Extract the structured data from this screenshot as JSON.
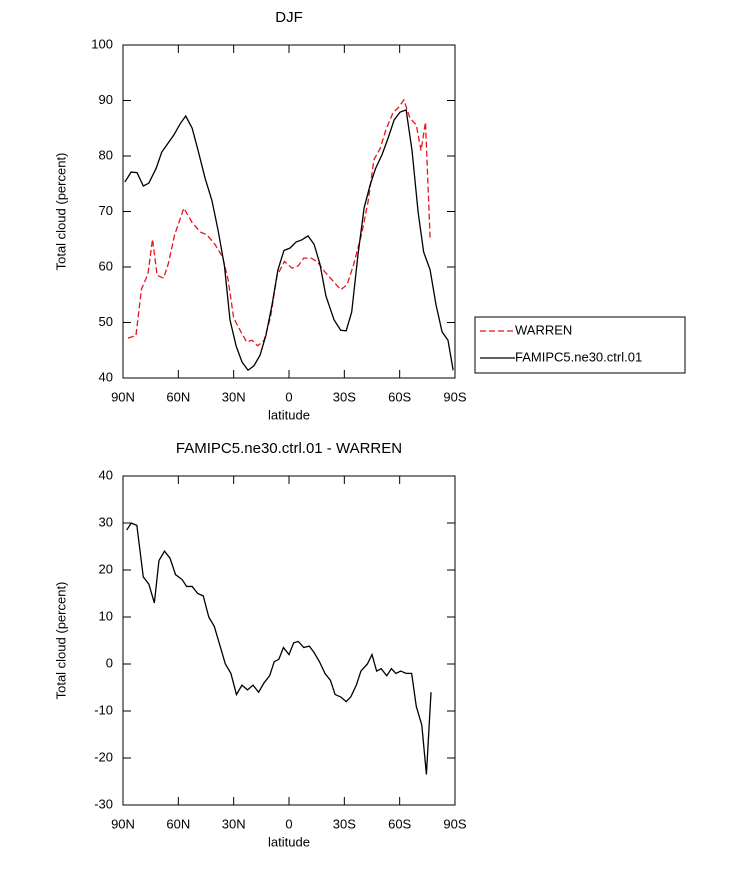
{
  "chart_data": [
    {
      "type": "line",
      "title": "DJF",
      "xlabel": "latitude",
      "ylabel": "Total cloud (percent)",
      "xlim": [
        90,
        -90
      ],
      "ylim": [
        40,
        100
      ],
      "xticks": [
        {
          "value": 90,
          "label": "90N"
        },
        {
          "value": 60,
          "label": "60N"
        },
        {
          "value": 30,
          "label": "30N"
        },
        0,
        {
          "value": -30,
          "label": "30S"
        },
        {
          "value": -60,
          "label": "60S"
        },
        {
          "value": -90,
          "label": "90S"
        }
      ],
      "yticks": [
        40,
        50,
        60,
        70,
        80,
        90,
        100
      ],
      "legend": "right",
      "series": [
        {
          "name": "WARREN",
          "color": "#e8141b",
          "dash": true,
          "x": [
            87.3,
            83,
            80,
            76.5,
            74,
            71.5,
            68,
            65.5,
            62,
            57,
            52.5,
            48,
            44.5,
            40,
            36,
            33,
            30,
            26.5,
            23,
            20,
            17,
            13.5,
            10,
            6.5,
            2.5,
            -1.6,
            -5,
            -8,
            -12,
            -15.5,
            -19.5,
            -23.3,
            -28,
            -31.5,
            -35,
            -39.5,
            -43,
            -46,
            -49.5,
            -52.5,
            -56.5,
            -59,
            -62.3,
            -65.6,
            -69,
            -71.6,
            -74,
            -76.5
          ],
          "values": [
            47.2,
            47.6,
            56,
            58.7,
            65,
            58.5,
            58,
            60.5,
            65.8,
            70.6,
            68,
            66.3,
            65.8,
            64,
            61.8,
            57.7,
            50.8,
            48.6,
            46.5,
            46.8,
            45.8,
            46.8,
            51,
            58.4,
            61,
            59.8,
            60.2,
            61.6,
            61.6,
            60.9,
            59.1,
            57.7,
            55.9,
            56.8,
            60.4,
            66.1,
            72,
            79.3,
            81.4,
            84.7,
            87.9,
            88.6,
            90.1,
            86.8,
            85.6,
            81,
            86.1,
            65.2
          ]
        },
        {
          "name": "FAMIPC5.ne30.ctrl.01",
          "color": "#000000",
          "dash": false,
          "x": [
            89,
            85.6,
            82.4,
            79,
            76,
            72,
            69,
            65.6,
            62.4,
            59,
            56,
            52.5,
            49.3,
            45.5,
            41.8,
            38.5,
            35,
            32,
            28.7,
            25.5,
            22.2,
            19,
            15.7,
            12.5,
            9.2,
            6,
            2.7,
            -0.5,
            -3.8,
            -7,
            -10.3,
            -13.6,
            -16.8,
            -20,
            -24.4,
            -28,
            -31,
            -34,
            -37.4,
            -40.7,
            -44,
            -47,
            -50.4,
            -53.7,
            -57,
            -60.2,
            -63.5,
            -66.7,
            -70,
            -73,
            -76.5,
            -79.7,
            -83,
            -86.2,
            -89
          ],
          "values": [
            75.3,
            77.1,
            77,
            74.6,
            75.1,
            77.8,
            80.7,
            82.3,
            83.8,
            85.8,
            87.2,
            85,
            81,
            76,
            72,
            66.7,
            60.2,
            50.5,
            45.8,
            42.9,
            41.4,
            42.2,
            44.1,
            47.7,
            53.2,
            59.5,
            63,
            63.4,
            64.5,
            64.9,
            65.6,
            64.1,
            60.5,
            54.8,
            50.5,
            48.6,
            48.5,
            51.9,
            62.2,
            70.6,
            74.8,
            77.8,
            80.2,
            83.2,
            86.5,
            87.9,
            88.3,
            81,
            69.9,
            62.7,
            59.5,
            53.2,
            48.3,
            46.8,
            41.4
          ]
        }
      ]
    },
    {
      "type": "line",
      "title": "FAMIPC5.ne30.ctrl.01 - WARREN",
      "xlabel": "latitude",
      "ylabel": "Total cloud (percent)",
      "xlim": [
        90,
        -90
      ],
      "ylim": [
        -30,
        40
      ],
      "xticks": [
        {
          "value": 90,
          "label": "90N"
        },
        {
          "value": 60,
          "label": "60N"
        },
        {
          "value": 30,
          "label": "30N"
        },
        0,
        {
          "value": -30,
          "label": "30S"
        },
        {
          "value": -60,
          "label": "60S"
        },
        {
          "value": -90,
          "label": "90S"
        }
      ],
      "yticks": [
        -30,
        -20,
        -10,
        0,
        10,
        20,
        30,
        40
      ],
      "series": [
        {
          "color": "#000000",
          "dash": false,
          "x": [
            88,
            85.5,
            82.5,
            79,
            76,
            73,
            70.5,
            67.5,
            64.5,
            61.5,
            58,
            55.5,
            52.5,
            49.5,
            46.5,
            43.5,
            40.5,
            37.5,
            34.5,
            31.5,
            28.5,
            25.5,
            22.5,
            19.5,
            16.5,
            13.5,
            10.5,
            8,
            5.5,
            3,
            0,
            -2.5,
            -5,
            -8,
            -11,
            -13.5,
            -16.5,
            -19.5,
            -22.5,
            -25,
            -28,
            -31,
            -33.5,
            -36.5,
            -39,
            -42.5,
            -45,
            -47.5,
            -50,
            -53,
            -55.5,
            -58,
            -60.5,
            -63.5,
            -66.5,
            -69,
            -72,
            -74.5,
            -77
          ],
          "values": [
            28.5,
            30,
            29.5,
            18.5,
            17,
            13,
            22,
            24,
            22.5,
            19,
            18,
            16.5,
            16.5,
            15,
            14.5,
            10,
            8,
            4,
            0,
            -2,
            -6.5,
            -4.5,
            -5.5,
            -4.5,
            -6,
            -4,
            -2.5,
            0.5,
            1,
            3.5,
            2,
            4.5,
            4.8,
            3.5,
            3.8,
            2.5,
            0.5,
            -2,
            -3.5,
            -6.5,
            -7,
            -8,
            -7,
            -4.5,
            -1.5,
            0,
            2,
            -1.5,
            -1,
            -2.5,
            -1,
            -2,
            -1.5,
            -2,
            -2,
            -9,
            -13,
            -23.5,
            -6
          ]
        }
      ]
    }
  ]
}
